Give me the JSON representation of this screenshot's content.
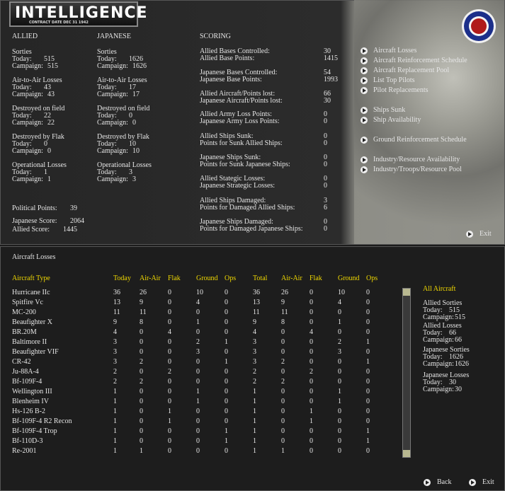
{
  "header": {
    "title": "INTELLIGENCE",
    "subtitle": "CONTRACT DATE DEC 31 1942"
  },
  "allied": {
    "heading": "ALLIED",
    "groups": [
      {
        "title": "Sorties",
        "lines": [
          {
            "label": "Today:",
            "value": 515
          },
          {
            "label": "Campaign:",
            "value": 515
          }
        ]
      },
      {
        "title": "Air-to-Air Losses",
        "lines": [
          {
            "label": "Today:",
            "value": 43
          },
          {
            "label": "Campaign:",
            "value": 43
          }
        ]
      },
      {
        "title": "Destroyed on field",
        "lines": [
          {
            "label": "Today:",
            "value": 22
          },
          {
            "label": "Campaign:",
            "value": 22
          }
        ]
      },
      {
        "title": "Destroyed by Flak",
        "lines": [
          {
            "label": "Today:",
            "value": 0
          },
          {
            "label": "Campaign:",
            "value": 0
          }
        ]
      },
      {
        "title": "Operational Losses",
        "lines": [
          {
            "label": "Today:",
            "value": 1
          },
          {
            "label": "Campaign:",
            "value": 1
          }
        ]
      }
    ]
  },
  "japanese": {
    "heading": "JAPANESE",
    "groups": [
      {
        "title": "Sorties",
        "lines": [
          {
            "label": "Today:",
            "value": 1626
          },
          {
            "label": "Campaign:",
            "value": 1626
          }
        ]
      },
      {
        "title": "Air-to-Air Losses",
        "lines": [
          {
            "label": "Today:",
            "value": 17
          },
          {
            "label": "Campaign:",
            "value": 17
          }
        ]
      },
      {
        "title": "Destroyed on field",
        "lines": [
          {
            "label": "Today:",
            "value": 0
          },
          {
            "label": "Campaign:",
            "value": 0
          }
        ]
      },
      {
        "title": "Destroyed by Flak",
        "lines": [
          {
            "label": "Today:",
            "value": 10
          },
          {
            "label": "Campaign:",
            "value": 10
          }
        ]
      },
      {
        "title": "Operational Losses",
        "lines": [
          {
            "label": "Today:",
            "value": 3
          },
          {
            "label": "Campaign:",
            "value": 3
          }
        ]
      }
    ]
  },
  "totals": [
    {
      "label": "Political Points:",
      "value": 39
    },
    {
      "label": "Japanese Score:",
      "value": 2064
    },
    {
      "label": "Allied Score:",
      "value": 1445
    }
  ],
  "scoring": {
    "heading": "SCORING",
    "groups": [
      [
        {
          "label": "Allied Bases Controlled:",
          "value": 30
        },
        {
          "label": "Allied Base Points:",
          "value": 1415
        }
      ],
      [
        {
          "label": "Japanese Bases Controlled:",
          "value": 54
        },
        {
          "label": "Japanese Base Points:",
          "value": 1993
        }
      ],
      [
        {
          "label": "Allied Aircraft/Points lost:",
          "value": 66
        },
        {
          "label": "Japanese Aircraft/Points lost:",
          "value": 30
        }
      ],
      [
        {
          "label": "Allied Army Loss Points:",
          "value": 0
        },
        {
          "label": "Japanese Army Loss Points:",
          "value": 0
        }
      ],
      [
        {
          "label": "Allied Ships Sunk:",
          "value": 0
        },
        {
          "label": "Points for Sunk Allied Ships:",
          "value": 0
        }
      ],
      [
        {
          "label": "Japanese Ships Sunk:",
          "value": 0
        },
        {
          "label": "Points for Sunk Japanese Ships:",
          "value": 0
        }
      ],
      [
        {
          "label": "Allied Stategic Losses:",
          "value": 0
        },
        {
          "label": "Japanese Strategic Losses:",
          "value": 0
        }
      ],
      [
        {
          "label": "Allied Ships Damaged:",
          "value": 3
        },
        {
          "label": "Points for Damaged Allied Ships:",
          "value": 6
        }
      ],
      [
        {
          "label": "Japanese Ships Damaged:",
          "value": 0
        },
        {
          "label": "Points for Damaged Japanese Ships:",
          "value": 0
        }
      ]
    ]
  },
  "menu": [
    [
      "Aircraft Losses",
      "Aircraft Reinforcement Schedule",
      "Aircraft Replacement Pool",
      "List Top Pilots",
      "Pilot Replacements"
    ],
    [
      "Ships Sunk",
      "Ship Availability"
    ],
    [
      "Ground Reinforcement Schedule"
    ],
    [
      "Industry/Resource Availability",
      "Industry/Troops/Resource Pool"
    ]
  ],
  "top_exit": "Exit",
  "table": {
    "title": "Aircraft Losses",
    "columns": [
      "Aircraft Type",
      "Today",
      "Air-Air",
      "Flak",
      "Ground",
      "Ops",
      "Total",
      "Air-Air",
      "Flak",
      "Ground",
      "Ops"
    ],
    "rows": [
      [
        "Hurricane IIc",
        36,
        26,
        0,
        10,
        0,
        36,
        26,
        0,
        10,
        0
      ],
      [
        "Spitfire Vc",
        13,
        9,
        0,
        4,
        0,
        13,
        9,
        0,
        4,
        0
      ],
      [
        "MC-200",
        11,
        11,
        0,
        0,
        0,
        11,
        11,
        0,
        0,
        0
      ],
      [
        "Beaufighter X",
        9,
        8,
        0,
        1,
        0,
        9,
        8,
        0,
        1,
        0
      ],
      [
        "BR.20M",
        4,
        0,
        4,
        0,
        0,
        4,
        0,
        4,
        0,
        0
      ],
      [
        "Baltimore II",
        3,
        0,
        0,
        2,
        1,
        3,
        0,
        0,
        2,
        1
      ],
      [
        "Beaufighter VIF",
        3,
        0,
        0,
        3,
        0,
        3,
        0,
        0,
        3,
        0
      ],
      [
        "CR-42",
        3,
        2,
        0,
        0,
        1,
        3,
        2,
        0,
        0,
        1
      ],
      [
        "Ju-88A-4",
        2,
        0,
        2,
        0,
        0,
        2,
        0,
        2,
        0,
        0
      ],
      [
        "Bf-109F-4",
        2,
        2,
        0,
        0,
        0,
        2,
        2,
        0,
        0,
        0
      ],
      [
        "Wellington III",
        1,
        0,
        0,
        1,
        0,
        1,
        0,
        0,
        1,
        0
      ],
      [
        "Blenheim IV",
        1,
        0,
        0,
        1,
        0,
        1,
        0,
        0,
        1,
        0
      ],
      [
        "Hs-126 B-2",
        1,
        0,
        1,
        0,
        0,
        1,
        0,
        1,
        0,
        0
      ],
      [
        "Bf-109F-4 R2 Recon",
        1,
        0,
        1,
        0,
        0,
        1,
        0,
        1,
        0,
        0
      ],
      [
        "Bf-109F-4 Trop",
        1,
        0,
        0,
        0,
        1,
        1,
        0,
        0,
        0,
        1
      ],
      [
        "Bf-110D-3",
        1,
        0,
        0,
        0,
        1,
        1,
        0,
        0,
        0,
        1
      ],
      [
        "Re-2001",
        1,
        1,
        0,
        0,
        0,
        1,
        1,
        0,
        0,
        0
      ]
    ]
  },
  "summary": {
    "title": "All Aircraft",
    "groups": [
      {
        "title": "Allied Sorties",
        "lines": [
          {
            "label": "Today:",
            "value": 515
          },
          {
            "label": "Campaign:",
            "value": 515
          }
        ]
      },
      {
        "title": "Allied Losses",
        "lines": [
          {
            "label": "Today:",
            "value": 66
          },
          {
            "label": "Campaign:",
            "value": 66
          }
        ]
      },
      {
        "title": "Japanese Sorties",
        "lines": [
          {
            "label": "Today:",
            "value": 1626
          },
          {
            "label": "Campaign:",
            "value": 1626
          }
        ]
      },
      {
        "title": "Japanese Losses",
        "lines": [
          {
            "label": "Today:",
            "value": 30
          },
          {
            "label": "Campaign:",
            "value": 30
          }
        ]
      }
    ]
  },
  "buttons": [
    "Back",
    "Exit"
  ]
}
